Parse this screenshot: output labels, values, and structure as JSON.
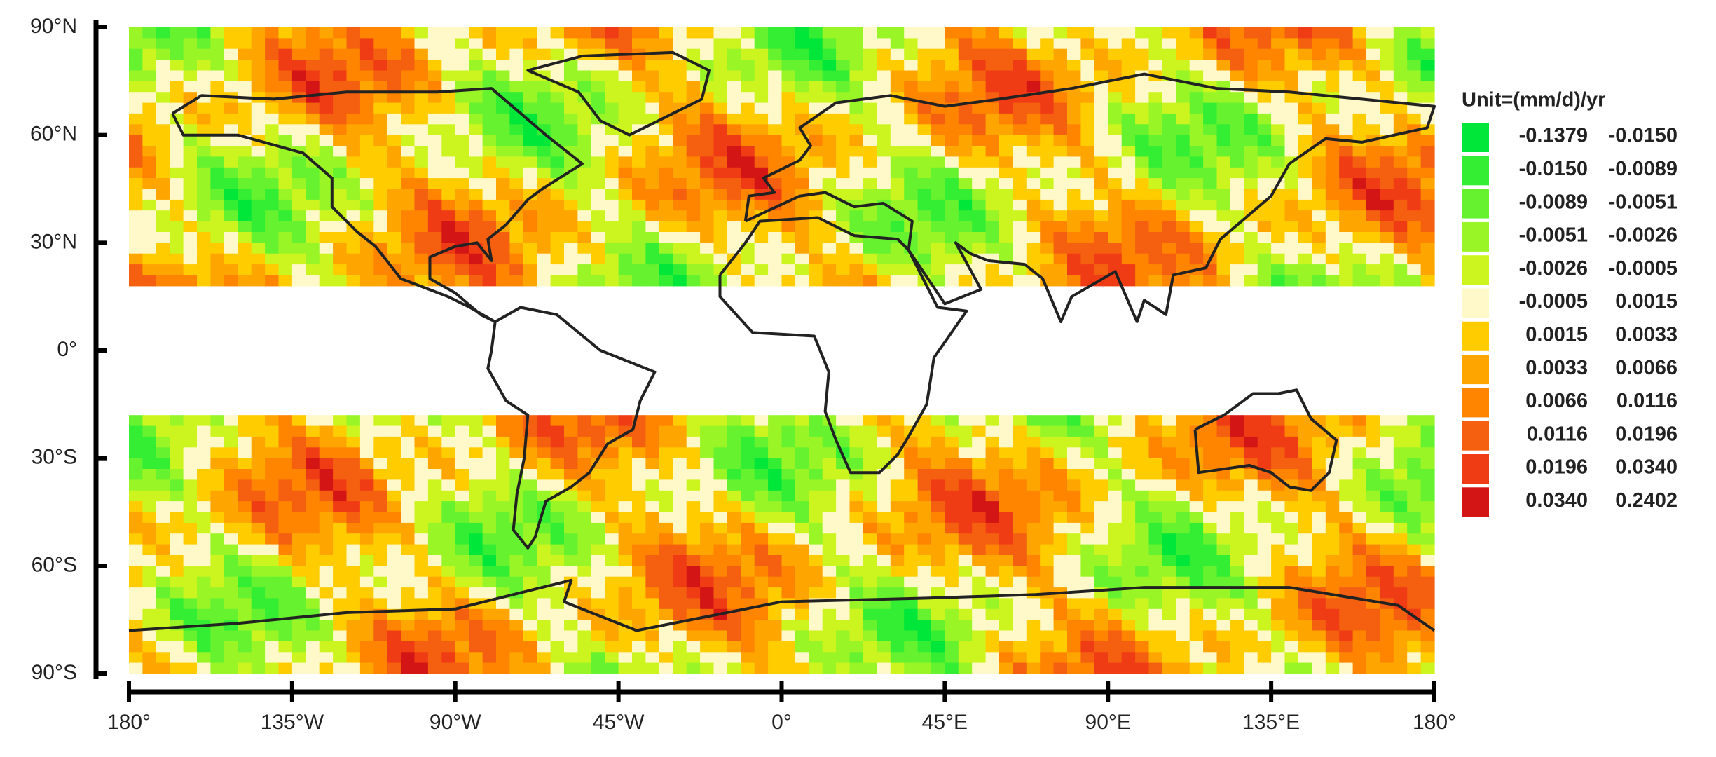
{
  "y_axis": {
    "ticks": [
      "90°N",
      "60°N",
      "30°N",
      "0°",
      "30°S",
      "60°S",
      "90°S"
    ]
  },
  "x_axis": {
    "ticks": [
      "180°",
      "135°W",
      "90°W",
      "45°W",
      "0°",
      "45°E",
      "90°E",
      "135°E",
      "180°"
    ]
  },
  "legend": {
    "title": "Unit=(mm/d)/yr",
    "items": [
      {
        "color": "#00e639",
        "from": "-0.1379",
        "to": "-0.0150"
      },
      {
        "color": "#33ee33",
        "from": "-0.0150",
        "to": "-0.0089"
      },
      {
        "color": "#66f22e",
        "from": "-0.0089",
        "to": "-0.0051"
      },
      {
        "color": "#99f526",
        "from": "-0.0051",
        "to": "-0.0026"
      },
      {
        "color": "#ccf51f",
        "from": "-0.0026",
        "to": "-0.0005"
      },
      {
        "color": "#fff8c8",
        "from": "-0.0005",
        "to": "0.0015"
      },
      {
        "color": "#ffcc00",
        "from": "0.0015",
        "to": "0.0033"
      },
      {
        "color": "#ffa500",
        "from": "0.0033",
        "to": "0.0066"
      },
      {
        "color": "#ff8400",
        "from": "0.0066",
        "to": "0.0116"
      },
      {
        "color": "#f56010",
        "from": "0.0116",
        "to": "0.0196"
      },
      {
        "color": "#f03c14",
        "from": "0.0196",
        "to": "0.0340"
      },
      {
        "color": "#d41515",
        "from": "0.0340",
        "to": "0.2402"
      }
    ]
  }
}
